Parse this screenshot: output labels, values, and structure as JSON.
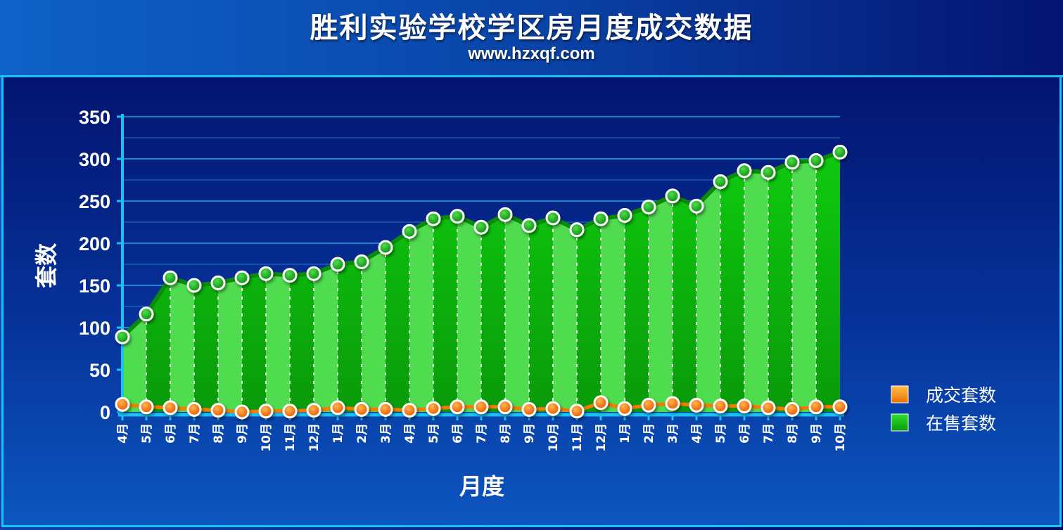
{
  "header": {
    "title": "胜利实验学校学区房月度成交数据",
    "subtitle": "www.hzxqf.com"
  },
  "colors": {
    "sold": "#f57c00",
    "sold_light": "#ffa726",
    "onsale": "#11b611",
    "onsale_light": "#4fdc4f",
    "grid": "#21b7ef",
    "axis": "#19c1f5"
  },
  "chart_data": {
    "type": "area",
    "title": "胜利实验学校学区房月度成交数据",
    "subtitle": "www.hzxqf.com",
    "xlabel": "月度",
    "ylabel": "套数",
    "ylim": [
      0,
      350
    ],
    "yticks": [
      0,
      50,
      100,
      150,
      200,
      250,
      300,
      350
    ],
    "grid": true,
    "legend_position": "right",
    "categories": [
      "4月",
      "5月",
      "6月",
      "7月",
      "8月",
      "9月",
      "10月",
      "11月",
      "12月",
      "1月",
      "2月",
      "3月",
      "4月",
      "5月",
      "6月",
      "7月",
      "8月",
      "9月",
      "10月",
      "11月",
      "12月",
      "1月",
      "2月",
      "3月",
      "4月",
      "5月",
      "6月",
      "7月",
      "8月",
      "9月",
      "10月"
    ],
    "series": [
      {
        "name": "成交套数",
        "type": "line",
        "color": "#f57c00",
        "values": [
          9,
          6,
          5,
          3,
          2,
          0,
          1,
          1,
          2,
          5,
          3,
          3,
          2,
          4,
          6,
          6,
          6,
          3,
          4,
          1,
          11,
          4,
          8,
          10,
          8,
          7,
          7,
          5,
          3,
          6,
          6
        ]
      },
      {
        "name": "在售套数",
        "type": "area",
        "color": "#11b611",
        "values": [
          89,
          116,
          159,
          150,
          153,
          159,
          164,
          162,
          164,
          175,
          178,
          195,
          214,
          229,
          232,
          219,
          234,
          221,
          230,
          216,
          229,
          233,
          243,
          256,
          244,
          273,
          286,
          284,
          296,
          298,
          308
        ]
      }
    ]
  }
}
